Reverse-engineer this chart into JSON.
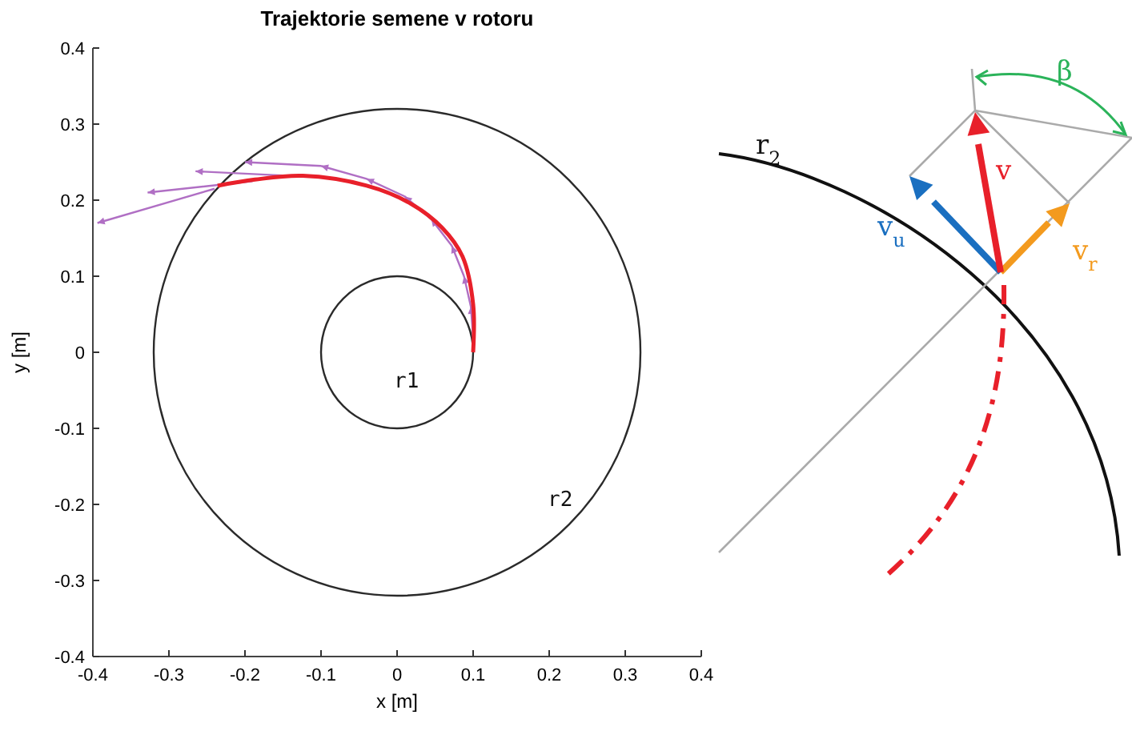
{
  "chart_data": {
    "type": "line",
    "title": "Trajektorie semene v rotoru",
    "xlabel": "x [m]",
    "ylabel": "y [m]",
    "xlim": [
      -0.4,
      0.4
    ],
    "ylim": [
      -0.4,
      0.4
    ],
    "xticks": [
      -0.4,
      -0.3,
      -0.2,
      -0.1,
      0,
      0.1,
      0.2,
      0.3,
      0.4
    ],
    "yticks": [
      -0.4,
      -0.3,
      -0.2,
      -0.1,
      0,
      0.1,
      0.2,
      0.3,
      0.4
    ],
    "grid": false,
    "marker": "none",
    "series": [
      {
        "color": "#b06fc4",
        "x": [
          0.1,
          0.097,
          null,
          0.097,
          0.088,
          null,
          0.088,
          0.072,
          null,
          0.072,
          0.045,
          null,
          0.045,
          0.01,
          null,
          0.01,
          -0.04,
          null,
          -0.04,
          -0.1,
          null,
          -0.1,
          -0.2,
          null,
          -0.14,
          -0.265,
          null,
          -0.19,
          -0.328,
          null,
          -0.24,
          -0.394
        ],
        "values": [
          0.02,
          0.06,
          null,
          0.06,
          0.1,
          null,
          0.1,
          0.14,
          null,
          0.14,
          0.175,
          null,
          0.175,
          0.205,
          null,
          0.205,
          0.228,
          null,
          0.228,
          0.245,
          null,
          0.245,
          0.25,
          null,
          0.232,
          0.238,
          null,
          0.225,
          0.21,
          null,
          0.215,
          0.17
        ]
      },
      {
        "color": "#e8202a",
        "x": [
          0.1,
          0.1,
          0.086,
          0.059,
          0.017,
          -0.04,
          -0.124,
          -0.187,
          -0.236
        ],
        "values": [
          0,
          0.063,
          0.126,
          0.164,
          0.196,
          0.219,
          0.232,
          0.227,
          0.219
        ]
      }
    ],
    "annotations": [
      "r1",
      "r2",
      "r$_{2}$",
      "v",
      "v$_{u}$",
      "v$_{r}$",
      "β"
    ]
  }
}
